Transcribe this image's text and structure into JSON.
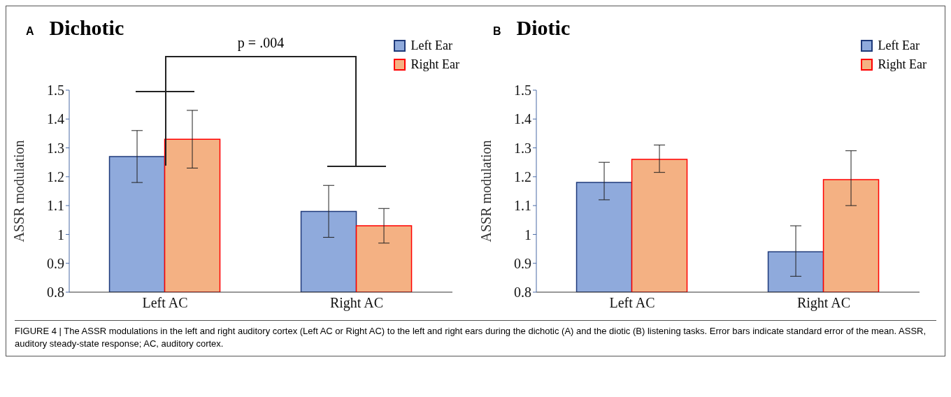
{
  "chart_data": [
    {
      "type": "bar",
      "title": "Dichotic",
      "ylabel": "ASSR modulation",
      "annotations": [
        "A",
        "p = .004"
      ],
      "categories": [
        "Left AC",
        "Right AC"
      ],
      "series": [
        {
          "name": "Left Ear",
          "color": "#8faadc",
          "values": [
            1.27,
            1.08
          ],
          "errors": [
            [
              1.18,
              1.36
            ],
            [
              0.99,
              1.17
            ]
          ]
        },
        {
          "name": "Right Ear",
          "color": "#f4b183",
          "values": [
            1.33,
            1.03
          ],
          "errors": [
            [
              1.23,
              1.43
            ],
            [
              0.97,
              1.09
            ]
          ]
        }
      ],
      "ylim": [
        0.8,
        1.5
      ],
      "yticks": [
        0.8,
        0.9,
        1,
        1.1,
        1.2,
        1.3,
        1.4,
        1.5
      ],
      "legend": "top right",
      "grid": false
    },
    {
      "type": "bar",
      "title": "Diotic",
      "ylabel": "ASSR modulation",
      "annotations": [
        "B",
        "FIGURE 4 | The ASSR modulations in the left and right auditory cortex (Left AC or Right AC) to the left and right ears during the dichotic (A) and the diotic (B) listening tasks. Error bars indicate standard error of the mean. ASSR, auditory steady-state response; AC, auditory cortex."
      ],
      "categories": [
        "Left AC",
        "Right AC"
      ],
      "series": [
        {
          "name": "Left Ear",
          "color": "#8faadc",
          "values": [
            1.18,
            0.94
          ],
          "errors": [
            [
              1.12,
              1.25
            ],
            [
              0.855,
              1.03
            ]
          ]
        },
        {
          "name": "Right Ear",
          "color": "#f4b183",
          "values": [
            1.26,
            1.19
          ],
          "errors": [
            [
              1.215,
              1.31
            ],
            [
              1.1,
              1.29
            ]
          ]
        }
      ],
      "ylim": [
        0.8,
        1.5
      ],
      "yticks": [
        0.8,
        0.9,
        1,
        1.1,
        1.2,
        1.3,
        1.4,
        1.5
      ],
      "legend": "top right",
      "grid": false
    }
  ]
}
